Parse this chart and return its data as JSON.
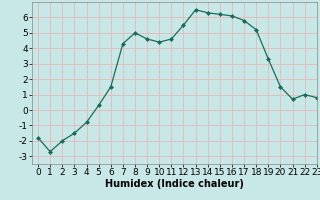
{
  "x": [
    0,
    1,
    2,
    3,
    4,
    5,
    6,
    7,
    8,
    9,
    10,
    11,
    12,
    13,
    14,
    15,
    16,
    17,
    18,
    19,
    20,
    21,
    22,
    23
  ],
  "y": [
    -1.8,
    -2.7,
    -2.0,
    -1.5,
    -0.8,
    0.3,
    1.5,
    4.3,
    5.0,
    4.6,
    4.4,
    4.6,
    5.5,
    6.5,
    6.3,
    6.2,
    6.1,
    5.8,
    5.2,
    3.3,
    1.5,
    0.7,
    1.0,
    0.8
  ],
  "line_color": "#1a6b5a",
  "marker": "D",
  "marker_size": 2,
  "bg_color": "#c8e8e8",
  "grid_color": "#e8b8b8",
  "xlabel": "Humidex (Indice chaleur)",
  "xlim": [
    -0.5,
    23
  ],
  "ylim": [
    -3.5,
    7.0
  ],
  "yticks": [
    -3,
    -2,
    -1,
    0,
    1,
    2,
    3,
    4,
    5,
    6
  ],
  "xticks": [
    0,
    1,
    2,
    3,
    4,
    5,
    6,
    7,
    8,
    9,
    10,
    11,
    12,
    13,
    14,
    15,
    16,
    17,
    18,
    19,
    20,
    21,
    22,
    23
  ],
  "xlabel_fontsize": 7,
  "tick_fontsize": 6.5
}
